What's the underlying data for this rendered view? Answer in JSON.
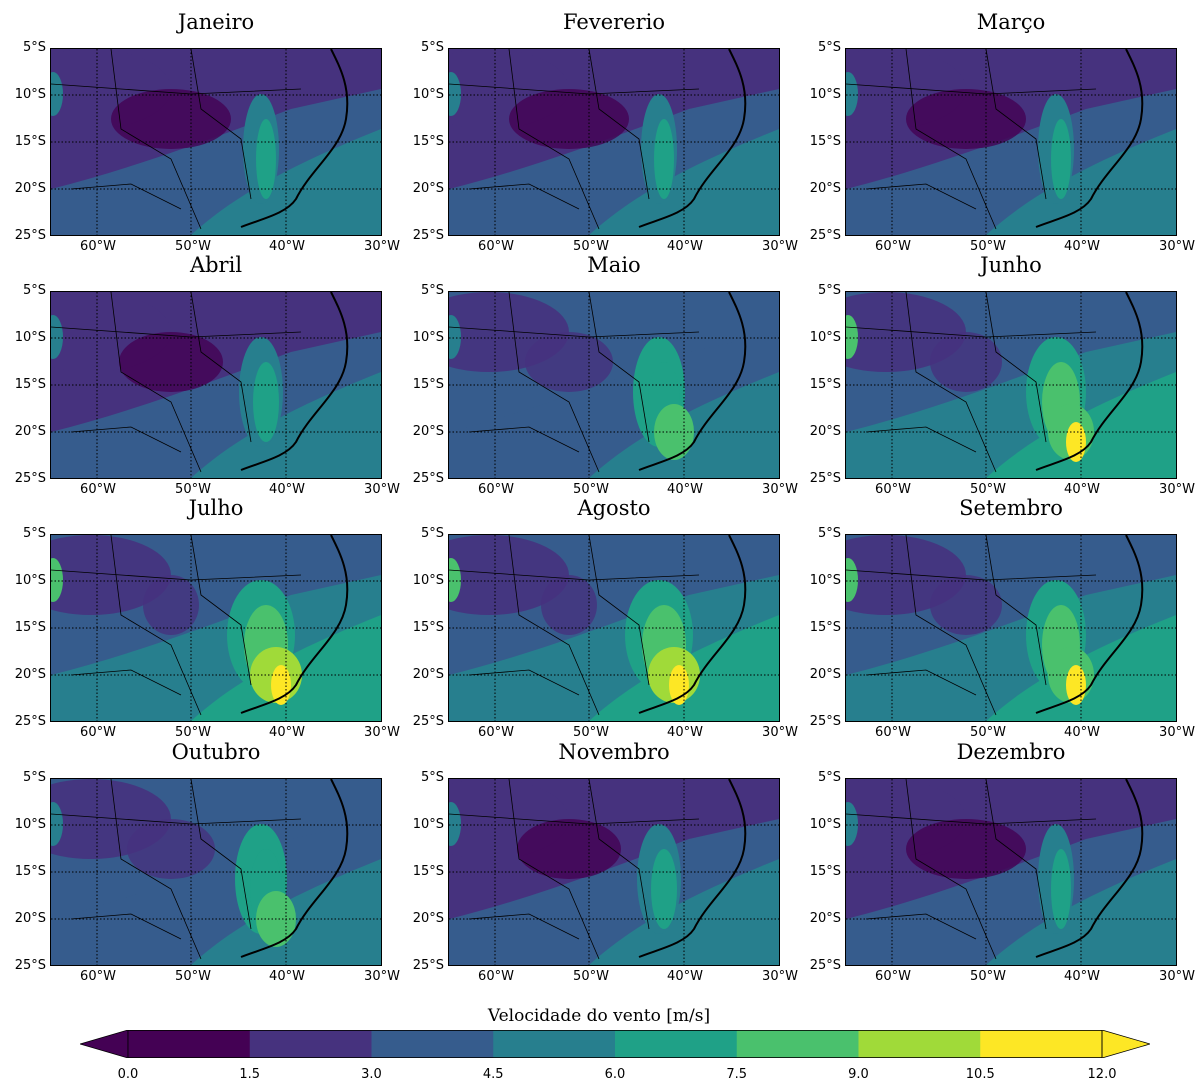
{
  "panels": [
    {
      "title": "Janeiro"
    },
    {
      "title": "Fevererio"
    },
    {
      "title": "Março"
    },
    {
      "title": "Abril"
    },
    {
      "title": "Maio"
    },
    {
      "title": "Junho"
    },
    {
      "title": "Julho"
    },
    {
      "title": "Agosto"
    },
    {
      "title": "Setembro"
    },
    {
      "title": "Outubro"
    },
    {
      "title": "Novembro"
    },
    {
      "title": "Dezembro"
    }
  ],
  "lat_labels": [
    "5°S",
    "10°S",
    "15°S",
    "20°S",
    "25°S"
  ],
  "lon_labels": [
    "60°W",
    "50°W",
    "40°W",
    "30°W"
  ],
  "colorbar": {
    "label": "Velocidade do vento [m/s]",
    "ticks": [
      "0.0",
      "1.5",
      "3.0",
      "4.5",
      "6.0",
      "7.5",
      "9.0",
      "10.5",
      "12.0"
    ],
    "colors": [
      "#440154",
      "#46327e",
      "#365c8d",
      "#277f8e",
      "#1fa187",
      "#4ac16d",
      "#a0da39",
      "#fde725"
    ],
    "extend": "both"
  },
  "map_extent": {
    "lon": [
      -65,
      -30
    ],
    "lat": [
      -25,
      -5
    ]
  }
}
